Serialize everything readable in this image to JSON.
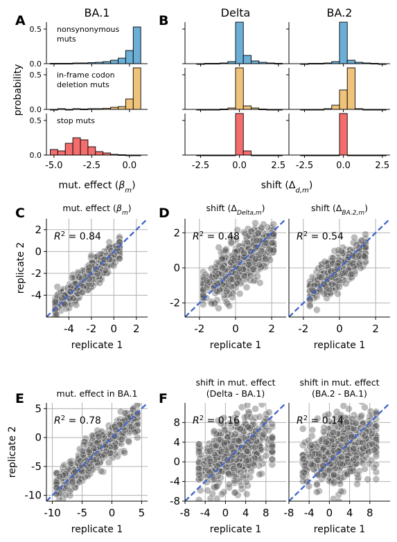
{
  "panel_labels": {
    "A": "A",
    "B": "B",
    "C": "C",
    "D": "D",
    "E": "E",
    "F": "F"
  },
  "colors": {
    "nonsyn": "#6baed6",
    "deletion": "#f0c37a",
    "stop": "#f46d6d",
    "diag": "#4466cc",
    "points": "#555555"
  },
  "chart_data": [
    {
      "type": "bar",
      "panel": "A",
      "title": "BA.1",
      "xlabel": "mut. effect (β_m)",
      "ylabel": "probability",
      "xlim": [
        -5.5,
        1.2
      ],
      "ylim": [
        0,
        0.6
      ],
      "xticks": [
        "-5.0",
        "-2.5",
        "0.0"
      ],
      "yticks": [
        "0.0",
        "0.5"
      ],
      "rows": [
        {
          "label": "nonsynonymous muts",
          "color": "#6baed6",
          "bin_edges": [
            -5.25,
            -4.75,
            -4.25,
            -3.75,
            -3.25,
            -2.75,
            -2.25,
            -1.75,
            -1.25,
            -0.75,
            -0.25,
            0.25,
            0.75
          ],
          "values": [
            0.005,
            0.005,
            0.005,
            0.01,
            0.01,
            0.015,
            0.02,
            0.03,
            0.05,
            0.08,
            0.19,
            0.53,
            0.01
          ]
        },
        {
          "label": "in-frame codon deletion muts",
          "color": "#f0c37a",
          "bin_edges": [
            -5.25,
            -4.75,
            -4.25,
            -3.75,
            -3.25,
            -2.75,
            -2.25,
            -1.75,
            -1.25,
            -0.75,
            -0.25,
            0.25,
            0.75
          ],
          "values": [
            0,
            0.01,
            0,
            0.01,
            0.005,
            0.01,
            0.01,
            0.015,
            0.03,
            0.04,
            0.15,
            0.67,
            0.02
          ]
        },
        {
          "label": "stop muts",
          "color": "#f46d6d",
          "bin_edges": [
            -5.25,
            -4.75,
            -4.25,
            -3.75,
            -3.25,
            -2.75,
            -2.25,
            -1.75,
            -1.25,
            -0.75,
            -0.25,
            0.25,
            0.75
          ],
          "values": [
            0.08,
            0.06,
            0.17,
            0.25,
            0.22,
            0.12,
            0.05,
            0.03,
            0.01,
            0.005,
            0,
            0,
            0
          ]
        }
      ]
    },
    {
      "type": "bar",
      "panel": "B",
      "title": "Delta",
      "xlabel": "shift (Δ_d,m)",
      "xlim": [
        -3.5,
        3.0
      ],
      "xticks": [
        "-2.5",
        "0.0",
        "2.5"
      ],
      "ylim": [
        0,
        0.6
      ],
      "rows": [
        {
          "color": "#6baed6",
          "bin_edges": [
            -2.75,
            -2.25,
            -1.75,
            -1.25,
            -0.75,
            -0.25,
            0.25,
            0.75,
            1.25,
            1.75,
            2.25,
            2.75
          ],
          "values": [
            0,
            0.005,
            0.005,
            0.01,
            0.03,
            0.78,
            0.12,
            0.04,
            0.02,
            0.01,
            0.005
          ]
        },
        {
          "color": "#f0c37a",
          "bin_edges": [
            -2.75,
            -2.25,
            -1.75,
            -1.25,
            -0.75,
            -0.25,
            0.25,
            0.75,
            1.25,
            1.75,
            2.25,
            2.75
          ],
          "values": [
            0,
            0,
            0,
            0.005,
            0.02,
            0.86,
            0.05,
            0.02,
            0.005,
            0,
            0
          ]
        },
        {
          "color": "#f46d6d",
          "bin_edges": [
            -2.75,
            -2.25,
            -1.75,
            -1.25,
            -0.75,
            -0.25,
            0.25,
            0.75,
            1.25,
            1.75,
            2.25,
            2.75
          ],
          "values": [
            0,
            0,
            0,
            0,
            0,
            0.94,
            0.06,
            0,
            0,
            0,
            0
          ]
        }
      ]
    },
    {
      "type": "bar",
      "panel": "B",
      "title": "BA.2",
      "xlim": [
        -3.5,
        3.0
      ],
      "xticks": [
        "-2.5",
        "0.0",
        "2.5"
      ],
      "ylim": [
        0,
        0.6
      ],
      "rows": [
        {
          "color": "#6baed6",
          "bin_edges": [
            -2.75,
            -2.25,
            -1.75,
            -1.25,
            -0.75,
            -0.25,
            0.25,
            0.75,
            1.25,
            1.75,
            2.25,
            2.75
          ],
          "values": [
            0,
            0.005,
            0.005,
            0.01,
            0.03,
            0.86,
            0.05,
            0.02,
            0.01,
            0.005,
            0
          ]
        },
        {
          "color": "#f0c37a",
          "bin_edges": [
            -2.75,
            -2.25,
            -1.75,
            -1.25,
            -0.75,
            -0.25,
            0.25,
            0.75,
            1.25,
            1.75,
            2.25,
            2.75
          ],
          "values": [
            0,
            0,
            0,
            0.01,
            0.06,
            0.28,
            0.7,
            0.01,
            0,
            0,
            0
          ]
        },
        {
          "color": "#f46d6d",
          "bin_edges": [
            -2.75,
            -2.25,
            -1.75,
            -1.25,
            -0.75,
            -0.25,
            0.25,
            0.75,
            1.25,
            1.75,
            2.25,
            2.75
          ],
          "values": [
            0,
            0,
            0,
            0,
            0,
            0.95,
            0,
            0,
            0,
            0,
            0
          ]
        }
      ]
    },
    {
      "type": "scatter",
      "panel": "C",
      "title": "mut. effect (β_m)",
      "xlabel": "replicate 1",
      "ylabel": "replicate 2",
      "r2": "R² = 0.84",
      "xlim": [
        -6,
        3
      ],
      "ylim": [
        -6,
        3
      ],
      "xticks": [
        -4,
        -2,
        0,
        2
      ],
      "yticks": [
        -4,
        -2,
        0,
        2
      ],
      "r2_value": 0.84,
      "x_spread": [
        -5.5,
        0.8
      ],
      "n": 700,
      "seed": 11
    },
    {
      "type": "scatter",
      "panel": "D",
      "title": "shift (Δ_Delta,m)",
      "xlabel": "replicate 1",
      "ylabel": "",
      "r2": "R² = 0.48",
      "xlim": [
        -2.8,
        2.8
      ],
      "ylim": [
        -2.8,
        2.8
      ],
      "xticks": [
        -2,
        0,
        2
      ],
      "yticks": [
        -2,
        0,
        2
      ],
      "r2_value": 0.48,
      "x_spread": [
        -2,
        2.3
      ],
      "n": 650,
      "seed": 23
    },
    {
      "type": "scatter",
      "panel": "D",
      "title": "shift (Δ_BA.2,m)",
      "xlabel": "replicate 1",
      "ylabel": "",
      "r2": "R² = 0.54",
      "xlim": [
        -2.8,
        2.8
      ],
      "ylim": [
        -2.8,
        2.8
      ],
      "xticks": [
        -2,
        0,
        2
      ],
      "yticks": [],
      "r2_value": 0.54,
      "x_spread": [
        -1.8,
        1.6
      ],
      "n": 450,
      "seed": 37
    },
    {
      "type": "scatter",
      "panel": "E",
      "title": "mut. effect in BA.1",
      "xlabel": "replicate 1",
      "ylabel": "replicate 2",
      "r2": "R² = 0.78",
      "xlim": [
        -11,
        6
      ],
      "ylim": [
        -11,
        6
      ],
      "xticks": [
        -10,
        -5,
        0,
        5
      ],
      "yticks": [
        -10,
        -5,
        0,
        5
      ],
      "r2_value": 0.78,
      "x_spread": [
        -10,
        5
      ],
      "n": 650,
      "seed": 41
    },
    {
      "type": "scatter",
      "panel": "F",
      "title": "shift in mut. effect (Delta - BA.1)",
      "xlabel": "replicate 1",
      "ylabel": "",
      "r2": "R² = 0.16",
      "xlim": [
        -8,
        12
      ],
      "ylim": [
        -8,
        12
      ],
      "xticks": [
        -8,
        -4,
        0,
        4,
        8
      ],
      "yticks": [
        -8,
        -4,
        0,
        4,
        8
      ],
      "r2_value": 0.16,
      "x_spread": [
        -6,
        10
      ],
      "n": 650,
      "seed": 53
    },
    {
      "type": "scatter",
      "panel": "F",
      "title": "shift in mut. effect (BA.2 - BA.1)",
      "xlabel": "replicate 1",
      "ylabel": "",
      "r2": "R² = 0.14",
      "xlim": [
        -8,
        12
      ],
      "ylim": [
        -8,
        12
      ],
      "xticks": [
        -8,
        -4,
        0,
        4,
        8
      ],
      "yticks": [],
      "r2_value": 0.14,
      "x_spread": [
        -6,
        10
      ],
      "n": 600,
      "seed": 67
    }
  ]
}
